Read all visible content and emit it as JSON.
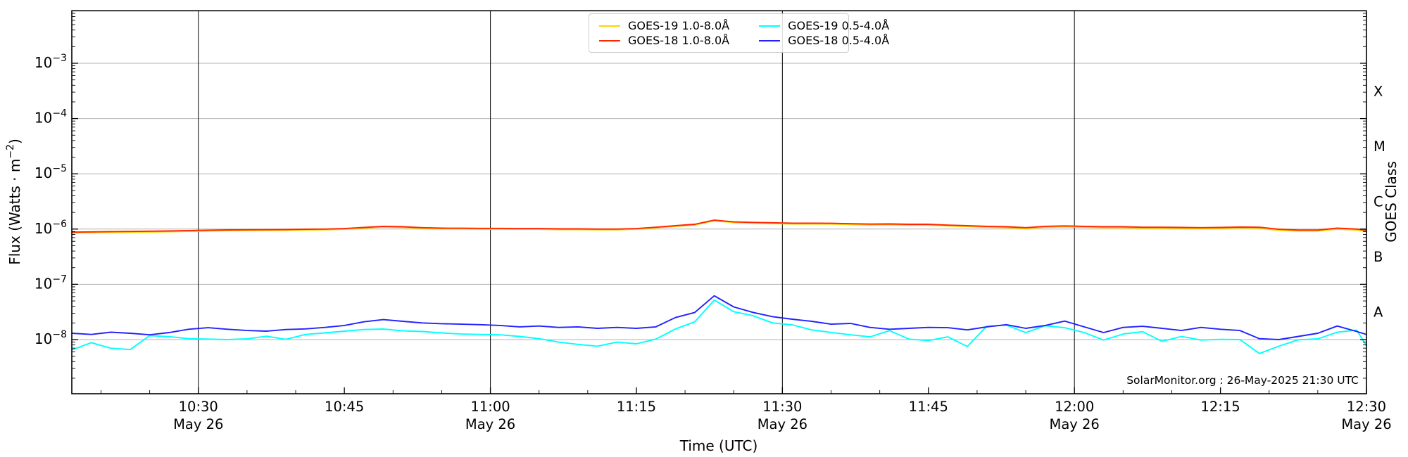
{
  "page": {
    "background": "#ffffff"
  },
  "chart_data": {
    "type": "line",
    "title": "",
    "xlabel": "Time (UTC)",
    "ylabel_parts": {
      "main": "Flux (Watts · m",
      "superscript": "−2",
      "close": ")"
    },
    "right_axis_label": "GOES Class",
    "annotation": "SolarMonitor.org : 26-May-2025 21:30 UTC",
    "grid_color": "#b3b3b3",
    "vline_color": "#1a1a1a",
    "axis_color": "#000000",
    "x_axis": {
      "start_time": "10:17",
      "end_time": "12:30",
      "end_minutes": 133,
      "minor_tick_interval_minutes": 5,
      "major_ticks": [
        {
          "minutes": 13,
          "label": "10:30",
          "date": "May 26"
        },
        {
          "minutes": 28,
          "label": "10:45",
          "date": ""
        },
        {
          "minutes": 43,
          "label": "11:00",
          "date": "May 26"
        },
        {
          "minutes": 58,
          "label": "11:15",
          "date": ""
        },
        {
          "minutes": 73,
          "label": "11:30",
          "date": "May 26"
        },
        {
          "minutes": 88,
          "label": "11:45",
          "date": ""
        },
        {
          "minutes": 103,
          "label": "12:00",
          "date": "May 26"
        },
        {
          "minutes": 118,
          "label": "12:15",
          "date": ""
        },
        {
          "minutes": 133,
          "label": "12:30",
          "date": "May 26"
        }
      ],
      "vertical_gridlines_minutes": [
        13,
        43,
        73,
        103
      ]
    },
    "y_axis": {
      "scale": "log",
      "unit": "Watts · m⁻²",
      "top_exponent": -2.05,
      "bottom_exponent": -8.98,
      "major_tick_exponents": [
        -3,
        -4,
        -5,
        -6,
        -7,
        -8
      ],
      "tick_label_base": "10"
    },
    "goes_class_labels": [
      {
        "label": "X",
        "exponent": -3.5
      },
      {
        "label": "M",
        "exponent": -4.5
      },
      {
        "label": "C",
        "exponent": -5.5
      },
      {
        "label": "B",
        "exponent": -6.5
      },
      {
        "label": "A",
        "exponent": -7.5
      }
    ],
    "x_minutes": [
      0,
      2,
      4,
      6,
      8,
      10,
      12,
      14,
      16,
      18,
      20,
      22,
      24,
      26,
      28,
      30,
      32,
      34,
      36,
      38,
      40,
      42,
      44,
      46,
      48,
      50,
      52,
      54,
      56,
      58,
      60,
      62,
      64,
      66,
      68,
      70,
      72,
      74,
      76,
      78,
      80,
      82,
      84,
      86,
      88,
      90,
      92,
      94,
      96,
      98,
      100,
      102,
      104,
      106,
      108,
      110,
      112,
      114,
      116,
      118,
      120,
      122,
      124,
      126,
      128,
      130,
      132,
      133
    ],
    "series": [
      {
        "name": "GOES-19 1.0-8.0Å",
        "color": "#ffd400",
        "unit_scale": 1e-07,
        "values": [
          8.5,
          8.6,
          8.7,
          8.75,
          8.85,
          8.95,
          9.1,
          9.25,
          9.35,
          9.4,
          9.45,
          9.5,
          9.6,
          9.7,
          9.9,
          10.4,
          10.9,
          10.7,
          10.3,
          10.1,
          10.05,
          10.0,
          10.0,
          9.9,
          9.9,
          9.8,
          9.8,
          9.7,
          9.7,
          9.9,
          10.5,
          11.2,
          11.9,
          14.1,
          13.1,
          12.8,
          12.6,
          12.4,
          12.4,
          12.3,
          12.1,
          11.9,
          12.0,
          11.8,
          11.8,
          11.4,
          11.1,
          10.8,
          10.6,
          10.2,
          10.8,
          11.0,
          10.8,
          10.6,
          10.6,
          10.4,
          10.4,
          10.3,
          10.2,
          10.3,
          10.5,
          10.4,
          9.5,
          9.2,
          9.2,
          10.0,
          9.6,
          9.1
        ]
      },
      {
        "name": "GOES-18 1.0-8.0Å",
        "color": "#ff2600",
        "unit_scale": 1e-07,
        "values": [
          8.8,
          8.9,
          9.0,
          9.05,
          9.15,
          9.25,
          9.4,
          9.55,
          9.65,
          9.7,
          9.75,
          9.8,
          9.9,
          10.0,
          10.2,
          10.7,
          11.2,
          11.0,
          10.6,
          10.4,
          10.35,
          10.3,
          10.3,
          10.2,
          10.2,
          10.1,
          10.1,
          10.0,
          10.0,
          10.2,
          10.8,
          11.5,
          12.2,
          14.5,
          13.5,
          13.2,
          13.0,
          12.8,
          12.8,
          12.7,
          12.5,
          12.3,
          12.4,
          12.2,
          12.2,
          11.8,
          11.5,
          11.2,
          11.0,
          10.6,
          11.2,
          11.4,
          11.2,
          11.0,
          11.0,
          10.8,
          10.8,
          10.7,
          10.6,
          10.7,
          10.9,
          10.8,
          9.9,
          9.6,
          9.6,
          10.4,
          10.0,
          9.5
        ]
      },
      {
        "name": "GOES-19 0.5-4.0Å",
        "color": "#00ffff",
        "unit_scale": 1e-09,
        "values": [
          6.5,
          8.8,
          7.0,
          6.6,
          11.8,
          11.3,
          10.4,
          10.2,
          10.0,
          10.3,
          11.5,
          10.1,
          12.4,
          13.2,
          14.2,
          15.2,
          15.5,
          14.4,
          14.0,
          13.2,
          12.6,
          12.4,
          12.2,
          11.4,
          10.4,
          9.0,
          8.2,
          7.6,
          9.0,
          8.4,
          10.2,
          15.5,
          21,
          52,
          32,
          27,
          20,
          18.5,
          15,
          13.5,
          12.2,
          11.2,
          14.5,
          10.2,
          9.6,
          11.2,
          7.5,
          17.5,
          18.3,
          13.4,
          17.8,
          16.4,
          13.4,
          9.8,
          12.6,
          13.9,
          9.3,
          11.4,
          9.8,
          10.1,
          10.0,
          5.6,
          7.6,
          9.9,
          10.3,
          13.6,
          14.8,
          7.7
        ]
      },
      {
        "name": "GOES-18 0.5-4.0Å",
        "color": "#2222ff",
        "unit_scale": 1e-09,
        "values": [
          13,
          12.4,
          13.6,
          13.0,
          12.2,
          13.4,
          15.4,
          16.4,
          15.4,
          14.6,
          14.2,
          15.2,
          15.6,
          16.6,
          18,
          21,
          23,
          21.4,
          20,
          19.4,
          19,
          18.6,
          18,
          17,
          17.6,
          16.6,
          17,
          16,
          16.6,
          16,
          17,
          25,
          31,
          62,
          39,
          31,
          26,
          23.4,
          21.4,
          19,
          19.6,
          16.6,
          15.4,
          16,
          16.6,
          16.4,
          15,
          17,
          18.6,
          16,
          18,
          21.6,
          17,
          13.4,
          16.6,
          17.4,
          16,
          14.6,
          16.6,
          15.4,
          14.6,
          10.4,
          10,
          11.4,
          13,
          17.6,
          14,
          12.4
        ]
      }
    ],
    "legend_position": "top-center"
  }
}
